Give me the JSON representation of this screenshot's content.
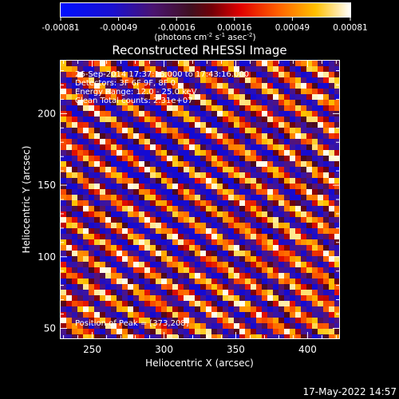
{
  "colorbar": {
    "ticks": [
      "-0.00081",
      "-0.00049",
      "-0.00016",
      "0.00016",
      "0.00049",
      "0.00081"
    ],
    "unit_prefix": "(photons cm",
    "unit_exp1": "-2",
    "unit_mid": " s",
    "unit_exp2": "-1",
    "unit_mid2": " asec",
    "unit_exp3": "-2",
    "unit_suffix": ")"
  },
  "chart_data": {
    "type": "heatmap",
    "title": "Reconstructed RHESSI Image",
    "xlabel": "Heliocentric X (arcsec)",
    "ylabel": "Heliocentric Y (arcsec)",
    "xlim": [
      228,
      422
    ],
    "ylim": [
      43,
      237
    ],
    "x_ticks": [
      250,
      300,
      350,
      400
    ],
    "y_ticks": [
      50,
      100,
      150,
      200
    ],
    "colormap": "rhessi-bluered",
    "value_range": [
      -0.00081,
      0.00081
    ],
    "stripe_pattern": "diagonal fringes, upper-left to lower-right",
    "info_lines": [
      "26-Sep-2014 17:37:16.000 to 17:43:16.000",
      "Detectors: 3F 6F 9F, 8F 0",
      "Energy Range: 12.0 - 25.0 keV",
      "Clean    Total counts: 2.31e+07"
    ],
    "peak_label": "Position of Peak = [373,208]"
  },
  "footer": {
    "timestamp": "17-May-2022 14:57"
  }
}
